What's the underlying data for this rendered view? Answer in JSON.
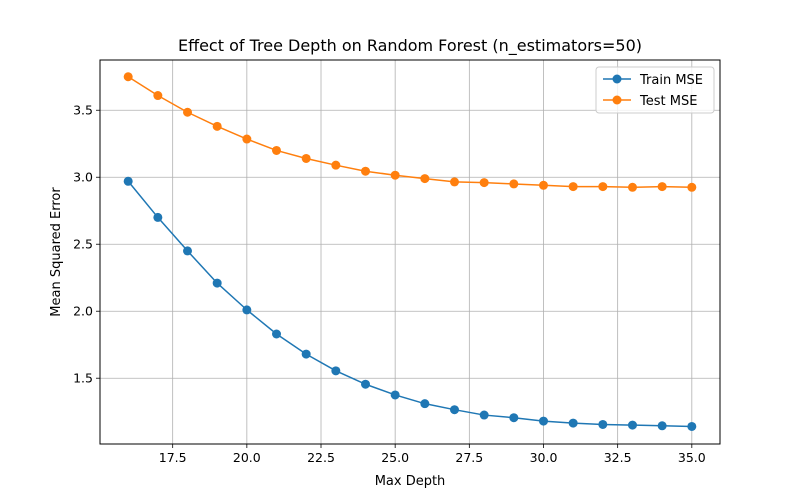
{
  "chart_data": {
    "type": "line",
    "title": "Effect of Tree Depth on Random Forest (n_estimators=50)",
    "xlabel": "Max Depth",
    "ylabel": "Mean Squared Error",
    "xlim": [
      15.05,
      35.95
    ],
    "ylim": [
      1.009,
      3.875
    ],
    "xticks": [
      "17.5",
      "20.0",
      "22.5",
      "25.0",
      "27.5",
      "30.0",
      "32.5",
      "35.0"
    ],
    "yticks": [
      "1.5",
      "2.0",
      "2.5",
      "3.0",
      "3.5"
    ],
    "grid": true,
    "legend_position": "top-right",
    "x": [
      16,
      17,
      18,
      19,
      20,
      21,
      22,
      23,
      24,
      25,
      26,
      27,
      28,
      29,
      30,
      31,
      32,
      33,
      34,
      35
    ],
    "series": [
      {
        "name": "Train MSE",
        "color": "#1f77b4",
        "values": [
          2.97,
          2.7,
          2.45,
          2.21,
          2.01,
          1.83,
          1.68,
          1.555,
          1.455,
          1.375,
          1.31,
          1.265,
          1.225,
          1.205,
          1.18,
          1.165,
          1.155,
          1.15,
          1.145,
          1.14
        ]
      },
      {
        "name": "Test MSE",
        "color": "#ff7f0e",
        "values": [
          3.75,
          3.61,
          3.485,
          3.38,
          3.285,
          3.2,
          3.14,
          3.09,
          3.045,
          3.015,
          2.99,
          2.965,
          2.96,
          2.95,
          2.94,
          2.93,
          2.93,
          2.925,
          2.93,
          2.925
        ]
      }
    ]
  }
}
